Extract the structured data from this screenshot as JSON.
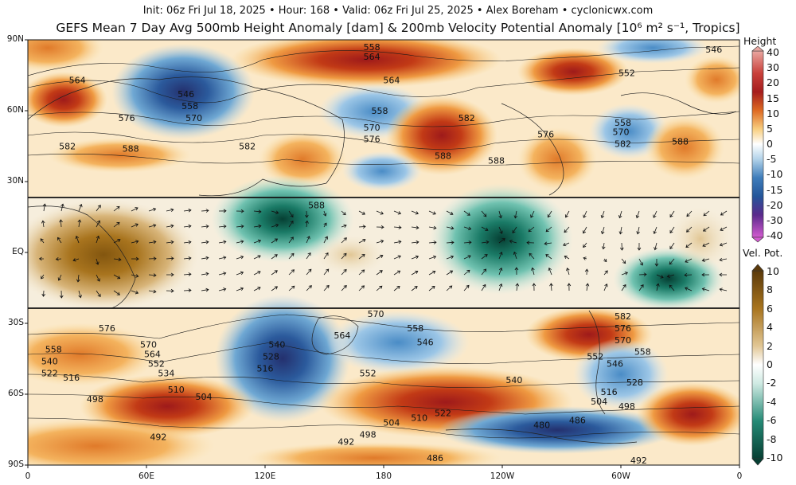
{
  "header": {
    "subtitle": "Init: 06z Fri Jul 18, 2025 • Hour: 168 • Valid: 06z Fri Jul 25, 2025 • Alex Boreham • cyclonicwx.com",
    "title": "GEFS Mean 7 Day Avg 500mb Height Anomaly [dam] & 200mb Velocity Potential Anomaly [10⁶ m² s⁻¹, Tropics]"
  },
  "axes": {
    "y_labels": [
      "90N",
      "60N",
      "30N",
      "EQ",
      "30S",
      "60S",
      "90S"
    ],
    "y_values": [
      90,
      60,
      30,
      0,
      -30,
      -60,
      -90
    ],
    "x_labels": [
      "0",
      "60E",
      "120E",
      "180",
      "120W",
      "60W",
      "0"
    ],
    "x_values": [
      0,
      60,
      120,
      180,
      240,
      300,
      360
    ]
  },
  "tropics_band": {
    "lat_north": 25,
    "lat_south": -23
  },
  "height_colorbar": {
    "title": "Height",
    "labels": [
      "40",
      "30",
      "20",
      "15",
      "10",
      "5",
      "0",
      "-5",
      "-10",
      "-15",
      "-20",
      "-30",
      "-40"
    ],
    "colors": [
      "#e9a7a1",
      "#c9403a",
      "#a51d1d",
      "#c23a16",
      "#de6b23",
      "#ef9a42",
      "#f8cf81",
      "#ffffff",
      "#b3d3ea",
      "#6fa8d3",
      "#3f7dbb",
      "#24569a",
      "#3e2d86",
      "#7b2a8e",
      "#d25bd0"
    ]
  },
  "vp_colorbar": {
    "title": "Vel. Pot.",
    "labels": [
      "10",
      "8",
      "6",
      "4",
      "2",
      "0",
      "-2",
      "-4",
      "-6",
      "-8",
      "-10"
    ],
    "colors": [
      "#5b3a0b",
      "#83560f",
      "#a8741e",
      "#c89a4d",
      "#e1c694",
      "#f3e7cc",
      "#ffffff",
      "#cfeae3",
      "#8fd1c2",
      "#4fb09e",
      "#258a76",
      "#0d5e4e",
      "#063f33"
    ]
  },
  "height_contours": {
    "nh": [
      {
        "label": "564",
        "lon": 25,
        "lat": 73
      },
      {
        "label": "546",
        "lon": 80,
        "lat": 67
      },
      {
        "label": "558",
        "lon": 82,
        "lat": 62
      },
      {
        "label": "576",
        "lon": 50,
        "lat": 57
      },
      {
        "label": "570",
        "lon": 84,
        "lat": 57
      },
      {
        "label": "582",
        "lon": 20,
        "lat": 45
      },
      {
        "label": "588",
        "lon": 52,
        "lat": 44
      },
      {
        "label": "582",
        "lon": 111,
        "lat": 45
      },
      {
        "label": "588",
        "lon": 146,
        "lat": 20
      },
      {
        "label": "558",
        "lon": 174,
        "lat": 87
      },
      {
        "label": "564",
        "lon": 174,
        "lat": 83
      },
      {
        "label": "564",
        "lon": 184,
        "lat": 73
      },
      {
        "label": "558",
        "lon": 178,
        "lat": 60
      },
      {
        "label": "570",
        "lon": 174,
        "lat": 53
      },
      {
        "label": "576",
        "lon": 174,
        "lat": 48
      },
      {
        "label": "582",
        "lon": 222,
        "lat": 57
      },
      {
        "label": "588",
        "lon": 210,
        "lat": 41
      },
      {
        "label": "588",
        "lon": 237,
        "lat": 39
      },
      {
        "label": "576",
        "lon": 262,
        "lat": 50
      },
      {
        "label": "552",
        "lon": 303,
        "lat": 76
      },
      {
        "label": "546",
        "lon": 347,
        "lat": 86
      },
      {
        "label": "558",
        "lon": 301,
        "lat": 55
      },
      {
        "label": "570",
        "lon": 300,
        "lat": 51
      },
      {
        "label": "582",
        "lon": 301,
        "lat": 46
      },
      {
        "label": "588",
        "lon": 330,
        "lat": 47
      }
    ],
    "sh": [
      {
        "label": "576",
        "lon": 40,
        "lat": -32
      },
      {
        "label": "558",
        "lon": 13,
        "lat": -41
      },
      {
        "label": "540",
        "lon": 11,
        "lat": -46
      },
      {
        "label": "522",
        "lon": 11,
        "lat": -51
      },
      {
        "label": "516",
        "lon": 22,
        "lat": -53
      },
      {
        "label": "498",
        "lon": 34,
        "lat": -62
      },
      {
        "label": "570",
        "lon": 61,
        "lat": -39
      },
      {
        "label": "564",
        "lon": 63,
        "lat": -43
      },
      {
        "label": "552",
        "lon": 65,
        "lat": -47
      },
      {
        "label": "534",
        "lon": 70,
        "lat": -51
      },
      {
        "label": "510",
        "lon": 75,
        "lat": -58
      },
      {
        "label": "504",
        "lon": 89,
        "lat": -61
      },
      {
        "label": "492",
        "lon": 66,
        "lat": -78
      },
      {
        "label": "540",
        "lon": 126,
        "lat": -39
      },
      {
        "label": "528",
        "lon": 123,
        "lat": -44
      },
      {
        "label": "516",
        "lon": 120,
        "lat": -49
      },
      {
        "label": "570",
        "lon": 176,
        "lat": -26
      },
      {
        "label": "558",
        "lon": 196,
        "lat": -32
      },
      {
        "label": "564",
        "lon": 159,
        "lat": -35
      },
      {
        "label": "546",
        "lon": 201,
        "lat": -38
      },
      {
        "label": "552",
        "lon": 172,
        "lat": -51
      },
      {
        "label": "540",
        "lon": 246,
        "lat": -54
      },
      {
        "label": "522",
        "lon": 210,
        "lat": -68
      },
      {
        "label": "510",
        "lon": 198,
        "lat": -70
      },
      {
        "label": "504",
        "lon": 184,
        "lat": -72
      },
      {
        "label": "498",
        "lon": 172,
        "lat": -77
      },
      {
        "label": "492",
        "lon": 161,
        "lat": -80
      },
      {
        "label": "480",
        "lon": 260,
        "lat": -73
      },
      {
        "label": "486",
        "lon": 278,
        "lat": -71
      },
      {
        "label": "486",
        "lon": 206,
        "lat": -87
      },
      {
        "label": "492",
        "lon": 309,
        "lat": -88
      },
      {
        "label": "582",
        "lon": 301,
        "lat": -27
      },
      {
        "label": "576",
        "lon": 301,
        "lat": -32
      },
      {
        "label": "570",
        "lon": 301,
        "lat": -37
      },
      {
        "label": "558",
        "lon": 311,
        "lat": -42
      },
      {
        "label": "552",
        "lon": 287,
        "lat": -44
      },
      {
        "label": "546",
        "lon": 297,
        "lat": -47
      },
      {
        "label": "528",
        "lon": 307,
        "lat": -55
      },
      {
        "label": "516",
        "lon": 294,
        "lat": -59
      },
      {
        "label": "504",
        "lon": 289,
        "lat": -63
      },
      {
        "label": "498",
        "lon": 303,
        "lat": -65
      }
    ]
  }
}
